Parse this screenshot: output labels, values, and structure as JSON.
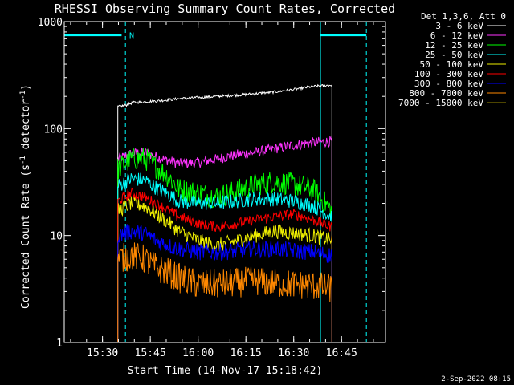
{
  "chart_data": {
    "type": "line",
    "title": "RHESSI Observing Summary Count Rates, Corrected",
    "xlabel": "Start Time (14-Nov-17 15:18:42)",
    "ylabel_parts": [
      "Corrected Count Rate (s",
      "-1",
      " detector",
      "-1",
      ")"
    ],
    "yscale": "log",
    "ylim": [
      1,
      1000
    ],
    "xlim_min": [
      15.3,
      16.98
    ],
    "x_ticks": [
      {
        "t": 15.5,
        "label": "15:30"
      },
      {
        "t": 15.75,
        "label": "15:45"
      },
      {
        "t": 16.0,
        "label": "16:00"
      },
      {
        "t": 16.25,
        "label": "16:15"
      },
      {
        "t": 16.5,
        "label": "16:30"
      },
      {
        "t": 16.75,
        "label": "16:45"
      }
    ],
    "y_ticks": [
      {
        "v": 1,
        "label": "1"
      },
      {
        "v": 10,
        "label": "10"
      },
      {
        "v": 100,
        "label": "100"
      },
      {
        "v": 1000,
        "label": "1000"
      }
    ],
    "legend_header": "Det 1,3,6, Att 0",
    "legend_placement": "outside-right",
    "series": [
      {
        "name": "3 - 6 keV",
        "color": "#ffffff",
        "x": [
          15.58,
          15.62,
          15.66,
          15.72,
          15.8,
          15.9,
          16.0,
          16.1,
          16.2,
          16.3,
          16.4,
          16.5,
          16.58,
          16.63,
          16.7
        ],
        "y": [
          160,
          165,
          175,
          178,
          182,
          190,
          195,
          200,
          205,
          212,
          220,
          232,
          245,
          250,
          255
        ]
      },
      {
        "name": "6 - 12 keV",
        "color": "#ff33ff",
        "x": [
          15.58,
          15.65,
          15.72,
          15.78,
          15.85,
          15.9,
          16.0,
          16.1,
          16.2,
          16.3,
          16.4,
          16.5,
          16.6,
          16.7
        ],
        "y": [
          52,
          58,
          60,
          55,
          50,
          47,
          48,
          52,
          57,
          60,
          65,
          70,
          74,
          76
        ]
      },
      {
        "name": "12 - 25 keV",
        "color": "#00ff00",
        "x": [
          15.58,
          15.65,
          15.72,
          15.78,
          15.85,
          15.9,
          16.0,
          16.1,
          16.2,
          16.3,
          16.4,
          16.5,
          16.6,
          16.7
        ],
        "y": [
          42,
          52,
          53,
          44,
          35,
          27,
          25,
          23,
          26,
          30,
          32,
          30,
          27,
          17
        ]
      },
      {
        "name": "25 - 50 keV",
        "color": "#00ffff",
        "x": [
          15.58,
          15.65,
          15.72,
          15.78,
          15.85,
          15.9,
          16.0,
          16.1,
          16.2,
          16.3,
          16.4,
          16.5,
          16.6,
          16.7
        ],
        "y": [
          29,
          34,
          33,
          28,
          24,
          21,
          20,
          20,
          21,
          22,
          22,
          21,
          19,
          15
        ]
      },
      {
        "name": "50 - 100 keV",
        "color": "#eeee00",
        "x": [
          15.58,
          15.65,
          15.72,
          15.78,
          15.85,
          15.9,
          16.0,
          16.1,
          16.2,
          16.3,
          16.4,
          16.5,
          16.6,
          16.7
        ],
        "y": [
          17,
          20,
          19,
          16,
          13,
          11,
          9,
          8,
          9,
          10,
          11,
          10.5,
          10,
          9
        ]
      },
      {
        "name": "100 - 300 keV",
        "color": "#ff0000",
        "x": [
          15.58,
          15.65,
          15.72,
          15.78,
          15.85,
          15.9,
          16.0,
          16.1,
          16.2,
          16.3,
          16.4,
          16.5,
          16.6,
          16.7
        ],
        "y": [
          21,
          25,
          23,
          20,
          17,
          15,
          13,
          12,
          13,
          14,
          15,
          16,
          14,
          12
        ]
      },
      {
        "name": "300 - 800 keV",
        "color": "#0000ff",
        "x": [
          15.58,
          15.65,
          15.72,
          15.78,
          15.85,
          15.9,
          16.0,
          16.1,
          16.2,
          16.3,
          16.4,
          16.5,
          16.6,
          16.7
        ],
        "y": [
          10,
          11,
          10.5,
          9,
          8,
          7.5,
          7,
          7,
          7.2,
          7.5,
          7.5,
          7.2,
          7,
          6.5
        ]
      },
      {
        "name": "800 - 7000 keV",
        "color": "#ff8800",
        "x": [
          15.58,
          15.65,
          15.72,
          15.78,
          15.85,
          15.9,
          16.0,
          16.1,
          16.2,
          16.3,
          16.4,
          16.5,
          16.6,
          16.7
        ],
        "y": [
          6,
          6.5,
          6,
          5,
          4.5,
          4,
          3.5,
          3.5,
          3.6,
          3.8,
          3.6,
          3.5,
          3.4,
          3.2
        ]
      },
      {
        "name": "7000 - 15000 keV",
        "color": "#9a8a00",
        "x": [],
        "y": []
      }
    ],
    "annotations": [
      {
        "type": "vline",
        "t": 15.3,
        "color": "#00ffff",
        "dashed": false
      },
      {
        "type": "vline",
        "t": 15.62,
        "color": "#00ffff",
        "dashed": true
      },
      {
        "type": "vline",
        "t": 16.64,
        "color": "#00ffff",
        "dashed": false
      },
      {
        "type": "vline",
        "t": 16.88,
        "color": "#00ffff",
        "dashed": true
      },
      {
        "type": "hbar",
        "t1": 15.3,
        "t2": 15.6,
        "value": 750,
        "color": "#00ffff"
      },
      {
        "type": "hbar",
        "t1": 16.64,
        "t2": 16.88,
        "value": 750,
        "color": "#00ffff"
      },
      {
        "type": "label",
        "text": "N",
        "t": 15.64,
        "value": 750,
        "color": "#00ffff"
      }
    ],
    "timestamp": "2-Sep-2022 08:15"
  }
}
